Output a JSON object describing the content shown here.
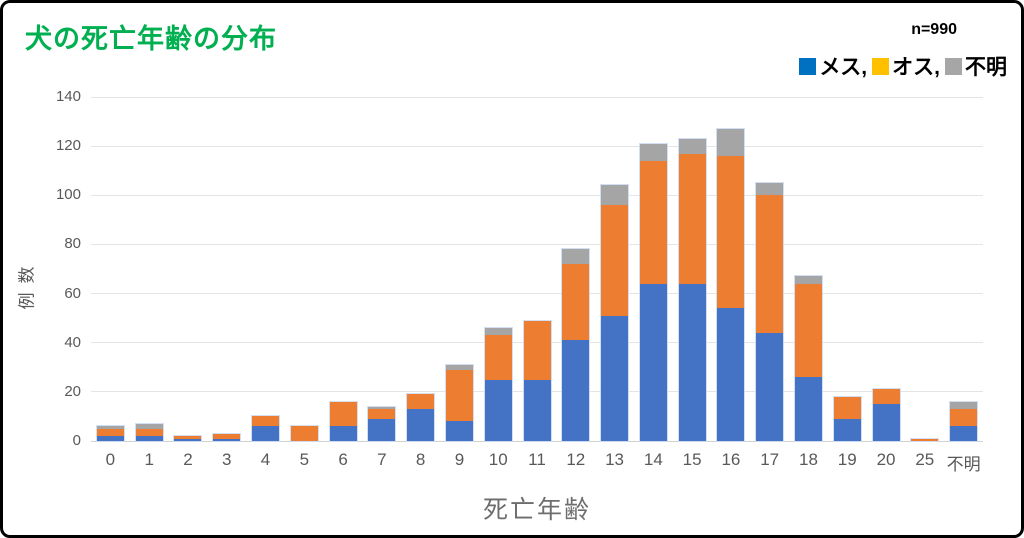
{
  "figure": {
    "title": "犬の死亡年齢の分布",
    "title_color": "#00B050",
    "sample_size_label": "n=990"
  },
  "legend": {
    "items": [
      {
        "label": "メス,",
        "color": "#0070C0"
      },
      {
        "label": "オス,",
        "color": "#FFC000"
      },
      {
        "label": "不明",
        "color": "#A6A6A6"
      }
    ]
  },
  "chart_data": {
    "type": "bar",
    "stacked": true,
    "title": "犬の死亡年齢の分布",
    "sample_size": "n=990",
    "xlabel": "死亡年齢",
    "ylabel": "例数",
    "ylim": [
      0,
      140
    ],
    "ytick_step": 20,
    "ytick_labels": [
      "0",
      "20",
      "40",
      "60",
      "80",
      "100",
      "120",
      "140"
    ],
    "grid": true,
    "legend_position": "top-right",
    "categories": [
      "0",
      "1",
      "2",
      "3",
      "4",
      "5",
      "6",
      "7",
      "8",
      "9",
      "10",
      "11",
      "12",
      "13",
      "14",
      "15",
      "16",
      "17",
      "18",
      "19",
      "20",
      "25",
      "不明"
    ],
    "series": [
      {
        "name": "メス",
        "color": "#4472C4",
        "values": [
          2,
          2,
          1,
          1,
          6,
          0,
          6,
          9,
          13,
          8,
          25,
          25,
          41,
          51,
          64,
          64,
          54,
          44,
          26,
          9,
          15,
          0,
          6
        ]
      },
      {
        "name": "オス",
        "color": "#ED7D31",
        "values": [
          3,
          3,
          1,
          2,
          4,
          6,
          10,
          4,
          6,
          21,
          18,
          24,
          31,
          45,
          50,
          53,
          62,
          56,
          38,
          9,
          6,
          1,
          7
        ]
      },
      {
        "name": "不明",
        "color": "#A5A5A5",
        "values": [
          1,
          2,
          0,
          0,
          0,
          0,
          0,
          1,
          0,
          2,
          3,
          0,
          6,
          8,
          7,
          6,
          11,
          5,
          3,
          0,
          0,
          0,
          3
        ]
      }
    ],
    "totals": [
      6,
      7,
      2,
      3,
      10,
      6,
      16,
      14,
      19,
      31,
      46,
      49,
      78,
      104,
      121,
      123,
      127,
      105,
      67,
      18,
      21,
      1,
      16
    ]
  }
}
